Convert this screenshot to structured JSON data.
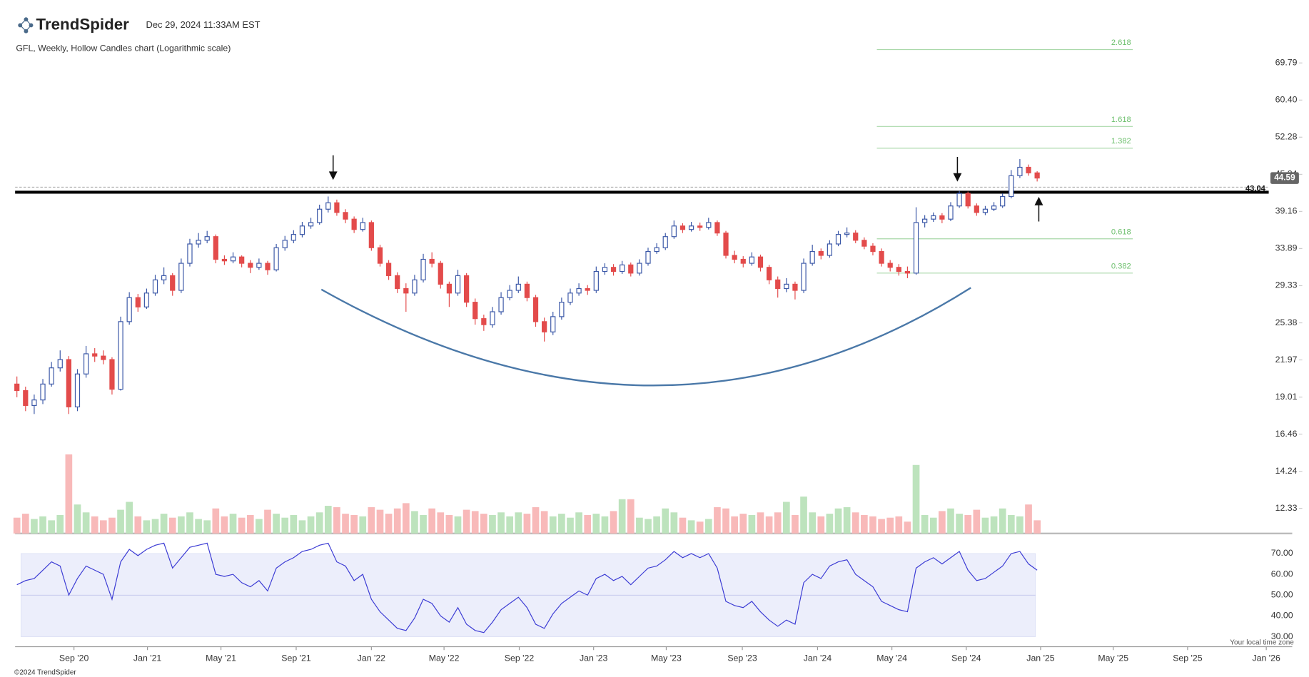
{
  "header": {
    "brand": "TrendSpider",
    "timestamp": "Dec 29, 2024 11:33AM EST",
    "copyright": "©2024 TrendSpider",
    "timezone_note": "Your local time zone"
  },
  "chart_data": {
    "type": "candlestick",
    "title": "GFL, Weekly, Hollow Candles chart (Logarithmic scale)",
    "log_scale": true,
    "ylim": [
      11.18,
      83.5
    ],
    "yticks": [
      12.33,
      14.24,
      16.46,
      19.01,
      21.97,
      25.38,
      29.33,
      33.89,
      39.16,
      45.24,
      52.28,
      {
        "value": 60.4,
        "label": "60.40"
      },
      69.79
    ],
    "xlim": [
      -0.5,
      147.5
    ],
    "xticks": [
      {
        "value": 6.6,
        "label": "Sep '20"
      },
      {
        "value": 15.1,
        "label": "Jan '21"
      },
      {
        "value": 23.6,
        "label": "May '21"
      },
      {
        "value": 32.3,
        "label": "Sep '21"
      },
      {
        "value": 41.0,
        "label": "Jan '22"
      },
      {
        "value": 49.4,
        "label": "May '22"
      },
      {
        "value": 58.1,
        "label": "Sep '22"
      },
      {
        "value": 66.7,
        "label": "Jan '23"
      },
      {
        "value": 75.1,
        "label": "May '23"
      },
      {
        "value": 83.9,
        "label": "Sep '23"
      },
      {
        "value": 92.6,
        "label": "Jan '24"
      },
      {
        "value": 101.2,
        "label": "May '24"
      },
      {
        "value": 109.8,
        "label": "Sep '24"
      },
      {
        "value": 118.4,
        "label": "Jan '25"
      },
      {
        "value": 126.8,
        "label": "May '25"
      },
      {
        "value": 135.4,
        "label": "Sep '25"
      },
      {
        "value": 144.5,
        "label": "Jan '26"
      }
    ],
    "up_color": "#3a57a7",
    "down_color": "#e34b4b",
    "volume_up_color": "#bde3bd",
    "volume_down_color": "#f8b9b9",
    "ohlc": [
      [
        20.0,
        20.6,
        19.0,
        19.5
      ],
      [
        19.5,
        19.8,
        18.0,
        18.4
      ],
      [
        18.4,
        19.2,
        17.8,
        18.8
      ],
      [
        18.8,
        20.4,
        18.5,
        20.0
      ],
      [
        20.0,
        21.8,
        19.8,
        21.3
      ],
      [
        21.3,
        22.8,
        21.0,
        22.0
      ],
      [
        22.0,
        22.3,
        17.8,
        18.3
      ],
      [
        18.3,
        21.2,
        18.0,
        20.8
      ],
      [
        20.8,
        23.2,
        20.5,
        22.5
      ],
      [
        22.5,
        23.0,
        21.8,
        22.3
      ],
      [
        22.3,
        22.8,
        21.6,
        22.0
      ],
      [
        22.0,
        22.2,
        19.2,
        19.6
      ],
      [
        19.6,
        26.0,
        19.5,
        25.5
      ],
      [
        25.5,
        28.6,
        25.2,
        28.0
      ],
      [
        28.0,
        28.4,
        26.5,
        27.0
      ],
      [
        27.0,
        29.0,
        26.8,
        28.5
      ],
      [
        28.5,
        30.6,
        28.2,
        30.0
      ],
      [
        30.0,
        31.5,
        29.5,
        30.5
      ],
      [
        30.5,
        30.8,
        28.2,
        28.8
      ],
      [
        28.8,
        32.6,
        28.5,
        32.0
      ],
      [
        32.0,
        35.2,
        31.6,
        34.5
      ],
      [
        34.5,
        36.0,
        34.0,
        35.0
      ],
      [
        35.0,
        36.3,
        34.6,
        35.5
      ],
      [
        35.5,
        35.8,
        32.0,
        32.5
      ],
      [
        32.5,
        33.0,
        31.8,
        32.3
      ],
      [
        32.3,
        33.4,
        32.0,
        32.8
      ],
      [
        32.8,
        33.0,
        31.5,
        32.0
      ],
      [
        32.0,
        32.4,
        30.8,
        31.5
      ],
      [
        31.5,
        32.6,
        31.2,
        32.0
      ],
      [
        32.0,
        32.3,
        30.6,
        31.2
      ],
      [
        31.2,
        34.5,
        31.0,
        34.0
      ],
      [
        34.0,
        35.6,
        33.6,
        35.0
      ],
      [
        35.0,
        36.4,
        34.6,
        35.8
      ],
      [
        35.8,
        37.6,
        35.4,
        37.0
      ],
      [
        37.0,
        38.2,
        36.6,
        37.5
      ],
      [
        37.5,
        40.2,
        37.2,
        39.5
      ],
      [
        39.5,
        41.5,
        39.0,
        40.5
      ],
      [
        40.5,
        41.0,
        38.5,
        39.0
      ],
      [
        39.0,
        39.5,
        37.4,
        38.0
      ],
      [
        38.0,
        38.4,
        36.0,
        36.5
      ],
      [
        36.5,
        38.2,
        36.2,
        37.5
      ],
      [
        37.5,
        37.8,
        33.6,
        34.0
      ],
      [
        34.0,
        34.4,
        31.6,
        32.0
      ],
      [
        32.0,
        32.4,
        30.0,
        30.5
      ],
      [
        30.5,
        30.9,
        28.5,
        29.0
      ],
      [
        29.0,
        29.6,
        26.5,
        28.5
      ],
      [
        28.5,
        30.6,
        28.2,
        30.0
      ],
      [
        30.0,
        33.2,
        29.7,
        32.5
      ],
      [
        32.5,
        33.4,
        31.5,
        32.0
      ],
      [
        32.0,
        32.3,
        29.0,
        29.5
      ],
      [
        29.5,
        29.8,
        27.0,
        28.5
      ],
      [
        28.5,
        31.2,
        28.2,
        30.5
      ],
      [
        30.5,
        30.8,
        27.0,
        27.5
      ],
      [
        27.5,
        27.9,
        25.2,
        25.8
      ],
      [
        25.8,
        26.2,
        24.6,
        25.2
      ],
      [
        25.2,
        27.0,
        24.9,
        26.5
      ],
      [
        26.5,
        28.6,
        26.2,
        28.0
      ],
      [
        28.0,
        29.4,
        27.7,
        28.8
      ],
      [
        28.8,
        30.4,
        28.5,
        29.5
      ],
      [
        29.5,
        29.8,
        27.6,
        28.0
      ],
      [
        28.0,
        28.3,
        25.0,
        25.5
      ],
      [
        25.5,
        25.9,
        23.6,
        24.5
      ],
      [
        24.5,
        26.5,
        24.2,
        26.0
      ],
      [
        26.0,
        28.0,
        25.7,
        27.5
      ],
      [
        27.5,
        29.0,
        27.2,
        28.5
      ],
      [
        28.5,
        29.6,
        28.2,
        29.0
      ],
      [
        29.0,
        29.4,
        28.3,
        28.8
      ],
      [
        28.8,
        31.6,
        28.5,
        31.0
      ],
      [
        31.0,
        32.0,
        30.6,
        31.5
      ],
      [
        31.5,
        31.9,
        30.5,
        31.0
      ],
      [
        31.0,
        32.3,
        30.7,
        31.8
      ],
      [
        31.8,
        32.1,
        30.4,
        30.8
      ],
      [
        30.8,
        32.5,
        30.5,
        32.0
      ],
      [
        32.0,
        34.0,
        31.7,
        33.5
      ],
      [
        33.5,
        34.6,
        33.2,
        34.0
      ],
      [
        34.0,
        36.0,
        33.7,
        35.5
      ],
      [
        35.5,
        37.8,
        35.2,
        37.0
      ],
      [
        37.0,
        37.4,
        36.0,
        36.5
      ],
      [
        36.5,
        37.6,
        36.2,
        37.0
      ],
      [
        37.0,
        37.5,
        36.3,
        36.8
      ],
      [
        36.8,
        38.2,
        36.5,
        37.5
      ],
      [
        37.5,
        37.8,
        35.6,
        36.0
      ],
      [
        36.0,
        36.3,
        32.6,
        33.0
      ],
      [
        33.0,
        33.6,
        32.0,
        32.5
      ],
      [
        32.5,
        32.9,
        31.5,
        32.0
      ],
      [
        32.0,
        33.4,
        31.7,
        32.8
      ],
      [
        32.8,
        33.1,
        31.0,
        31.5
      ],
      [
        31.5,
        31.8,
        29.5,
        30.0
      ],
      [
        30.0,
        30.4,
        28.0,
        29.0
      ],
      [
        29.0,
        30.2,
        28.6,
        29.5
      ],
      [
        29.5,
        29.8,
        27.8,
        28.8
      ],
      [
        28.8,
        32.6,
        28.5,
        32.0
      ],
      [
        32.0,
        34.4,
        31.7,
        33.5
      ],
      [
        33.5,
        33.9,
        32.5,
        33.0
      ],
      [
        33.0,
        35.0,
        32.7,
        34.5
      ],
      [
        34.5,
        36.3,
        34.2,
        35.8
      ],
      [
        35.8,
        36.8,
        35.4,
        36.0
      ],
      [
        36.0,
        36.4,
        34.6,
        35.0
      ],
      [
        35.0,
        35.4,
        33.8,
        34.2
      ],
      [
        34.2,
        34.6,
        33.0,
        33.5
      ],
      [
        33.5,
        33.9,
        31.6,
        32.0
      ],
      [
        32.0,
        32.4,
        31.0,
        31.5
      ],
      [
        31.5,
        31.9,
        30.5,
        31.0
      ],
      [
        31.0,
        31.6,
        30.2,
        30.8
      ],
      [
        30.8,
        39.8,
        30.6,
        37.5
      ],
      [
        37.5,
        38.6,
        36.8,
        38.0
      ],
      [
        38.0,
        39.0,
        37.6,
        38.5
      ],
      [
        38.5,
        38.9,
        37.4,
        38.0
      ],
      [
        38.0,
        40.6,
        37.7,
        40.0
      ],
      [
        40.0,
        42.4,
        39.7,
        42.0
      ],
      [
        42.0,
        42.3,
        39.6,
        40.0
      ],
      [
        40.0,
        40.4,
        38.5,
        39.0
      ],
      [
        39.0,
        40.0,
        38.6,
        39.5
      ],
      [
        39.5,
        40.6,
        39.2,
        40.0
      ],
      [
        40.0,
        42.0,
        39.7,
        41.5
      ],
      [
        41.5,
        46.0,
        41.2,
        45.0
      ],
      [
        45.0,
        48.0,
        44.6,
        46.5
      ],
      [
        46.5,
        47.0,
        45.0,
        45.5
      ],
      [
        45.5,
        45.8,
        44.0,
        44.59
      ]
    ],
    "volume_ylim": [
      0,
      7
    ],
    "volume": [
      1.2,
      1.5,
      1.1,
      1.3,
      1.0,
      1.4,
      6.0,
      2.2,
      1.6,
      1.3,
      1.0,
      1.2,
      1.8,
      2.4,
      1.3,
      1.0,
      1.1,
      1.5,
      1.2,
      1.3,
      1.6,
      1.1,
      1.0,
      1.9,
      1.3,
      1.5,
      1.2,
      1.4,
      1.1,
      1.8,
      1.5,
      1.2,
      1.4,
      1.0,
      1.3,
      1.6,
      2.1,
      2.0,
      1.5,
      1.4,
      1.3,
      2.0,
      1.8,
      1.5,
      1.9,
      2.3,
      1.7,
      1.4,
      1.9,
      1.6,
      1.4,
      1.3,
      1.8,
      1.7,
      1.5,
      1.4,
      1.6,
      1.3,
      1.6,
      1.5,
      2.0,
      1.7,
      1.3,
      1.5,
      1.2,
      1.6,
      1.4,
      1.5,
      1.3,
      1.7,
      2.6,
      2.6,
      1.2,
      1.1,
      1.3,
      1.9,
      1.6,
      1.2,
      1.0,
      0.9,
      1.1,
      2.0,
      1.9,
      1.3,
      1.5,
      1.4,
      1.6,
      1.3,
      1.6,
      2.4,
      1.4,
      2.8,
      1.6,
      1.3,
      1.5,
      1.9,
      2.0,
      1.6,
      1.4,
      1.3,
      1.1,
      1.2,
      1.3,
      0.9,
      5.2,
      1.4,
      1.2,
      1.7,
      1.9,
      1.5,
      1.4,
      1.8,
      1.2,
      1.3,
      1.9,
      1.4,
      1.3,
      2.2,
      1.0
    ],
    "rsi_ylim": [
      26.8,
      74.0
    ],
    "rsi_yticks": [
      {
        "value": 30,
        "label": "30.00"
      },
      {
        "value": 40,
        "label": "40.00"
      },
      {
        "value": 50,
        "label": "50.00"
      },
      {
        "value": 60,
        "label": "60.00"
      },
      {
        "value": 70,
        "label": "70.00"
      }
    ],
    "rsi_color": "#3b3bd4",
    "rsi": [
      55,
      57,
      58,
      62,
      66,
      64,
      50,
      58,
      64,
      62,
      60,
      48,
      66,
      72,
      69,
      72,
      74,
      75,
      63,
      68,
      73,
      74,
      75,
      60,
      59,
      60,
      56,
      54,
      57,
      52,
      63,
      66,
      68,
      71,
      72,
      74,
      75,
      66,
      64,
      57,
      60,
      48,
      42,
      38,
      34,
      33,
      39,
      48,
      46,
      40,
      37,
      44,
      36,
      33,
      32,
      37,
      43,
      46,
      49,
      44,
      36,
      34,
      41,
      46,
      49,
      52,
      50,
      58,
      60,
      57,
      59,
      55,
      59,
      63,
      64,
      67,
      71,
      68,
      70,
      68,
      70,
      63,
      47,
      45,
      44,
      47,
      42,
      38,
      35,
      38,
      36,
      56,
      60,
      58,
      64,
      66,
      67,
      60,
      57,
      54,
      47,
      45,
      43,
      42,
      63,
      66,
      68,
      65,
      68,
      71,
      62,
      57,
      58,
      61,
      64,
      70,
      71,
      65,
      62
    ],
    "support_level": 42.2,
    "reference_level": {
      "value": 43.04,
      "label": "43.04"
    },
    "last_price": 44.59,
    "fib_color": "#a8d8a8",
    "fib_levels": [
      {
        "label": "2.618",
        "price": 73.5
      },
      {
        "label": "1.618",
        "price": 54.5
      },
      {
        "label": "1.382",
        "price": 50.1
      },
      {
        "label": "0.618",
        "price": 35.2
      },
      {
        "label": "0.382",
        "price": 30.8
      }
    ]
  }
}
